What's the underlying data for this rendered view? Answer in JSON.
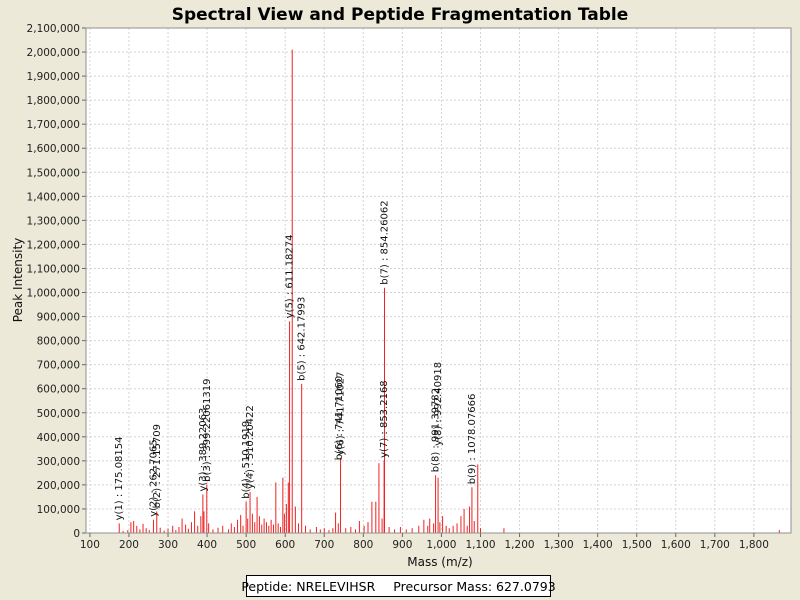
{
  "chart_data": {
    "type": "bar",
    "title": "Spectral View and Peptide Fragmentation Table",
    "xlabel": "Mass (m/z)",
    "ylabel": "Peak Intensity",
    "xlim": [
      90,
      1895
    ],
    "ylim": [
      0,
      2100000
    ],
    "x_ticks": [
      100,
      200,
      300,
      400,
      500,
      600,
      700,
      800,
      900,
      1000,
      1100,
      1200,
      1300,
      1400,
      1500,
      1600,
      1700,
      1800
    ],
    "x_tick_labels": [
      "100",
      "200",
      "300",
      "400",
      "500",
      "600",
      "700",
      "800",
      "900",
      "1,000",
      "1,100",
      "1,200",
      "1,300",
      "1,400",
      "1,500",
      "1,600",
      "1,700",
      "1,800"
    ],
    "y_ticks": [
      0,
      100000,
      200000,
      300000,
      400000,
      500000,
      600000,
      700000,
      800000,
      900000,
      1000000,
      1100000,
      1200000,
      1300000,
      1400000,
      1500000,
      1600000,
      1700000,
      1800000,
      1900000,
      2000000,
      2100000
    ],
    "y_tick_labels": [
      "0",
      "100,000",
      "200,000",
      "300,000",
      "400,000",
      "500,000",
      "600,000",
      "700,000",
      "800,000",
      "900,000",
      "1,000,000",
      "1,100,000",
      "1,200,000",
      "1,300,000",
      "1,400,000",
      "1,500,000",
      "1,600,000",
      "1,700,000",
      "1,800,000",
      "1,900,000",
      "2,000,000",
      "2,100,000"
    ],
    "grid": true,
    "series_color": "#ee2222",
    "peaks": [
      {
        "mz": 175.08,
        "intensity": 40000
      },
      {
        "mz": 185,
        "intensity": 8000
      },
      {
        "mz": 197,
        "intensity": 12000
      },
      {
        "mz": 205,
        "intensity": 45000
      },
      {
        "mz": 212,
        "intensity": 50000
      },
      {
        "mz": 220,
        "intensity": 30000
      },
      {
        "mz": 228,
        "intensity": 15000
      },
      {
        "mz": 236,
        "intensity": 38000
      },
      {
        "mz": 244,
        "intensity": 20000
      },
      {
        "mz": 252,
        "intensity": 12000
      },
      {
        "mz": 262.71,
        "intensity": 55000
      },
      {
        "mz": 271.15,
        "intensity": 90000
      },
      {
        "mz": 280,
        "intensity": 22000
      },
      {
        "mz": 290,
        "intensity": 10000
      },
      {
        "mz": 300,
        "intensity": 18000
      },
      {
        "mz": 312,
        "intensity": 30000
      },
      {
        "mz": 320,
        "intensity": 12000
      },
      {
        "mz": 328,
        "intensity": 25000
      },
      {
        "mz": 336,
        "intensity": 60000
      },
      {
        "mz": 345,
        "intensity": 35000
      },
      {
        "mz": 352,
        "intensity": 18000
      },
      {
        "mz": 360,
        "intensity": 45000
      },
      {
        "mz": 368,
        "intensity": 90000
      },
      {
        "mz": 376,
        "intensity": 30000
      },
      {
        "mz": 384,
        "intensity": 70000
      },
      {
        "mz": 389.22,
        "intensity": 160000
      },
      {
        "mz": 392,
        "intensity": 90000
      },
      {
        "mz": 399.22,
        "intensity": 200000
      },
      {
        "mz": 404,
        "intensity": 40000
      },
      {
        "mz": 415,
        "intensity": 15000
      },
      {
        "mz": 428,
        "intensity": 22000
      },
      {
        "mz": 440,
        "intensity": 30000
      },
      {
        "mz": 455,
        "intensity": 15000
      },
      {
        "mz": 462,
        "intensity": 40000
      },
      {
        "mz": 470,
        "intensity": 25000
      },
      {
        "mz": 478,
        "intensity": 55000
      },
      {
        "mz": 486,
        "intensity": 75000
      },
      {
        "mz": 492,
        "intensity": 30000
      },
      {
        "mz": 500,
        "intensity": 130000
      },
      {
        "mz": 504,
        "intensity": 60000
      },
      {
        "mz": 510,
        "intensity": 170000
      },
      {
        "mz": 516,
        "intensity": 80000
      },
      {
        "mz": 522,
        "intensity": 45000
      },
      {
        "mz": 528,
        "intensity": 150000
      },
      {
        "mz": 534,
        "intensity": 70000
      },
      {
        "mz": 540,
        "intensity": 35000
      },
      {
        "mz": 546,
        "intensity": 60000
      },
      {
        "mz": 552,
        "intensity": 45000
      },
      {
        "mz": 558,
        "intensity": 30000
      },
      {
        "mz": 564,
        "intensity": 55000
      },
      {
        "mz": 570,
        "intensity": 35000
      },
      {
        "mz": 576,
        "intensity": 210000
      },
      {
        "mz": 582,
        "intensity": 40000
      },
      {
        "mz": 588,
        "intensity": 25000
      },
      {
        "mz": 594,
        "intensity": 230000
      },
      {
        "mz": 598,
        "intensity": 80000
      },
      {
        "mz": 603,
        "intensity": 120000
      },
      {
        "mz": 608,
        "intensity": 210000
      },
      {
        "mz": 611.18,
        "intensity": 880000
      },
      {
        "mz": 618,
        "intensity": 2010000
      },
      {
        "mz": 626,
        "intensity": 110000
      },
      {
        "mz": 634,
        "intensity": 40000
      },
      {
        "mz": 642.18,
        "intensity": 620000
      },
      {
        "mz": 652,
        "intensity": 30000
      },
      {
        "mz": 664,
        "intensity": 15000
      },
      {
        "mz": 680,
        "intensity": 25000
      },
      {
        "mz": 690,
        "intensity": 15000
      },
      {
        "mz": 700,
        "intensity": 20000
      },
      {
        "mz": 712,
        "intensity": 12000
      },
      {
        "mz": 722,
        "intensity": 20000
      },
      {
        "mz": 729,
        "intensity": 85000
      },
      {
        "mz": 736,
        "intensity": 40000
      },
      {
        "mz": 741.71,
        "intensity": 310000
      },
      {
        "mz": 755,
        "intensity": 20000
      },
      {
        "mz": 768,
        "intensity": 25000
      },
      {
        "mz": 780,
        "intensity": 15000
      },
      {
        "mz": 790,
        "intensity": 50000
      },
      {
        "mz": 802,
        "intensity": 30000
      },
      {
        "mz": 812,
        "intensity": 45000
      },
      {
        "mz": 822,
        "intensity": 130000
      },
      {
        "mz": 832,
        "intensity": 130000
      },
      {
        "mz": 840,
        "intensity": 290000
      },
      {
        "mz": 848,
        "intensity": 60000
      },
      {
        "mz": 853.22,
        "intensity": 300000
      },
      {
        "mz": 854.26,
        "intensity": 1020000
      },
      {
        "mz": 866,
        "intensity": 25000
      },
      {
        "mz": 880,
        "intensity": 15000
      },
      {
        "mz": 895,
        "intensity": 25000
      },
      {
        "mz": 910,
        "intensity": 15000
      },
      {
        "mz": 925,
        "intensity": 20000
      },
      {
        "mz": 942,
        "intensity": 30000
      },
      {
        "mz": 955,
        "intensity": 55000
      },
      {
        "mz": 965,
        "intensity": 30000
      },
      {
        "mz": 970,
        "intensity": 60000
      },
      {
        "mz": 980,
        "intensity": 40000
      },
      {
        "mz": 985,
        "intensity": 240000
      },
      {
        "mz": 991.39,
        "intensity": 230000
      },
      {
        "mz": 996,
        "intensity": 45000
      },
      {
        "mz": 1003,
        "intensity": 70000
      },
      {
        "mz": 1012,
        "intensity": 30000
      },
      {
        "mz": 1020,
        "intensity": 20000
      },
      {
        "mz": 1030,
        "intensity": 30000
      },
      {
        "mz": 1040,
        "intensity": 40000
      },
      {
        "mz": 1050,
        "intensity": 70000
      },
      {
        "mz": 1058,
        "intensity": 100000
      },
      {
        "mz": 1066,
        "intensity": 30000
      },
      {
        "mz": 1072,
        "intensity": 110000
      },
      {
        "mz": 1078.08,
        "intensity": 190000
      },
      {
        "mz": 1084,
        "intensity": 50000
      },
      {
        "mz": 1093,
        "intensity": 285000
      },
      {
        "mz": 1100,
        "intensity": 20000
      },
      {
        "mz": 1160,
        "intensity": 20000
      },
      {
        "mz": 1865,
        "intensity": 12000
      }
    ],
    "annotations": [
      {
        "text": "y(1) : 175.08154",
        "mz": 175.08,
        "intensity": 40000
      },
      {
        "text": "y(2) : 262.7065",
        "mz": 262.71,
        "intensity": 55000
      },
      {
        "text": "b(2) : 271.15709",
        "mz": 271.15,
        "intensity": 90000
      },
      {
        "text": "y(3) : 389.22063",
        "mz": 389.22,
        "intensity": 160000
      },
      {
        "text": "b(3) : 399.22061319",
        "mz": 399.22,
        "intensity": 200000
      },
      {
        "text": "b(4) : 510.1919",
        "mz": 500,
        "intensity": 130000
      },
      {
        "text": "y(4) : 510.20422",
        "mz": 510,
        "intensity": 170000
      },
      {
        "text": "y(5) : 611.18274",
        "mz": 611.18,
        "intensity": 880000
      },
      {
        "text": "b(5) : 642.17993",
        "mz": 642.18,
        "intensity": 620000
      },
      {
        "text": "b(6) : 741.71060",
        "mz": 738,
        "intensity": 290000
      },
      {
        "text": "y(6) : 741.71027",
        "mz": 741.71,
        "intensity": 310000
      },
      {
        "text": "y(7) : 853.2168",
        "mz": 853.22,
        "intensity": 300000
      },
      {
        "text": "b(7) : 854.26062",
        "mz": 854.26,
        "intensity": 1020000
      },
      {
        "text": "b(8) : 991.39782",
        "mz": 985,
        "intensity": 240000
      },
      {
        "text": "y(8) : 992.40918",
        "mz": 991.39,
        "intensity": 350000
      },
      {
        "text": "b(9) : 1078.07666",
        "mz": 1078.08,
        "intensity": 190000
      }
    ]
  },
  "footer": {
    "peptide": "Peptide: NRELEVIHSR",
    "precursor": "Precursor Mass: 627.0793"
  }
}
